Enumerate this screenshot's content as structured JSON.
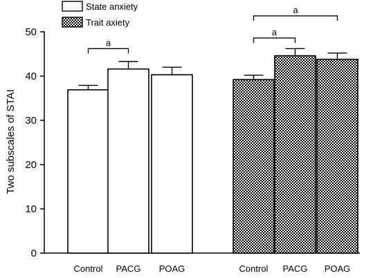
{
  "chart_data": {
    "type": "bar",
    "title": "",
    "xlabel": "",
    "ylabel": "Two subscales of STAI",
    "ylim": [
      0,
      50
    ],
    "yticks": [
      0,
      10,
      20,
      30,
      40,
      50
    ],
    "grid": false,
    "legend_position": "top-left",
    "groups": [
      {
        "series": "State anxiety",
        "categories": [
          "Control",
          "PACG",
          "POAG"
        ],
        "values": [
          36.9,
          41.6,
          40.3
        ],
        "errors": [
          1.0,
          1.7,
          1.7
        ]
      },
      {
        "series": "Trait axiety",
        "categories": [
          "Control",
          "PACG",
          "POAG"
        ],
        "values": [
          39.2,
          44.6,
          43.8
        ],
        "errors": [
          1.0,
          1.6,
          1.4
        ]
      }
    ],
    "series": [
      {
        "name": "State anxiety",
        "pattern": "white",
        "values": [
          36.9,
          41.6,
          40.3
        ]
      },
      {
        "name": "Trait axiety",
        "pattern": "checkered",
        "values": [
          39.2,
          44.6,
          43.8
        ]
      }
    ],
    "annotations": [
      {
        "text": "a",
        "group": 0,
        "from": 0,
        "to": 1,
        "y": 46.2
      },
      {
        "text": "a",
        "group": 1,
        "from": 0,
        "to": 1,
        "y": 48.6
      },
      {
        "text": "a",
        "group": 1,
        "from": 0,
        "to": 2,
        "y": 53.6
      }
    ],
    "colors": {
      "bar_fill": "#ffffff",
      "pattern_dark": "#000000",
      "pattern_light": "#ffffff",
      "stroke": "#000000"
    }
  }
}
